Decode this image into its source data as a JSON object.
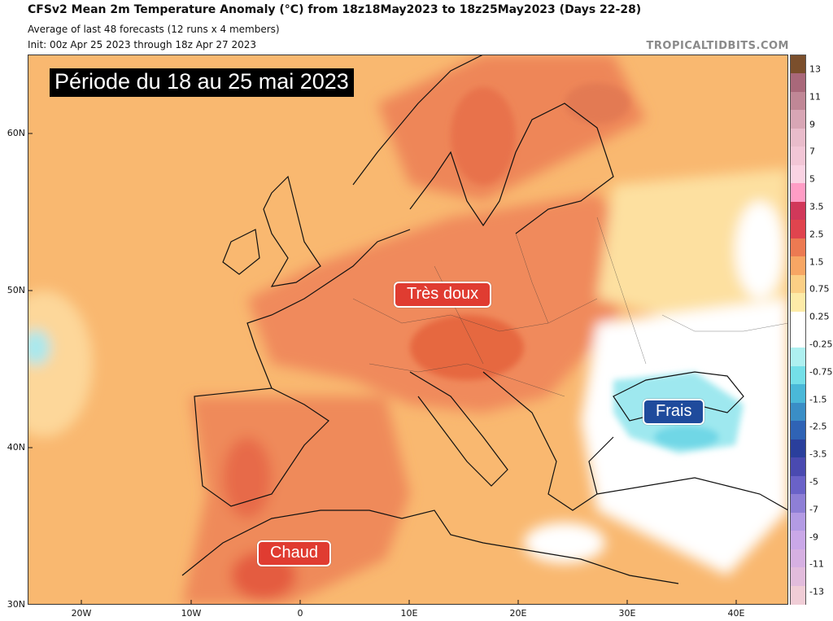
{
  "header": {
    "title": "CFSv2 Mean 2m Temperature Anomaly (°C) from 18z18May2023 to 18z25May2023 (Days 22-28)",
    "subtitle1": "Average of last 48 forecasts (12 runs x 4 members)",
    "subtitle2": "Init: 00z Apr 25 2023 through 18z Apr 27 2023",
    "credit": "TROPICALTIDBITS.COM"
  },
  "overlay": {
    "period": "Période du 18 au 25 mai 2023",
    "labels": {
      "doux": "Très doux",
      "chaud": "Chaud",
      "frais": "Frais"
    }
  },
  "axes": {
    "lat": [
      "60N",
      "50N",
      "40N",
      "30N"
    ],
    "lon": [
      "20W",
      "10W",
      "0",
      "10E",
      "20E",
      "30E",
      "40E"
    ]
  },
  "colorbar": {
    "labels": [
      "13",
      "11",
      "9",
      "7",
      "5",
      "3.5",
      "2.5",
      "1.5",
      "0.75",
      "0.25",
      "-0.25",
      "-0.75",
      "-1.5",
      "-2.5",
      "-3.5",
      "-5",
      "-7",
      "-9",
      "-11",
      "-13"
    ],
    "colors": [
      "#7b4f2c",
      "#a9687a",
      "#c08796",
      "#d8a6b5",
      "#e9bccb",
      "#f2c6d6",
      "#fad3e3",
      "#ff9dc5",
      "#d1385a",
      "#e0444e",
      "#ec7a52",
      "#f7a664",
      "#fbcf85",
      "#fdeba8",
      "#ffffff",
      "#ffffff",
      "#aef0f0",
      "#74dfe8",
      "#4ab8d8",
      "#3a8ec6",
      "#2f63b5",
      "#2a3f9c",
      "#4a4ab0",
      "#6a62c8",
      "#8e7fd6",
      "#b39be4",
      "#caa8e8",
      "#d6b0e2",
      "#e2bcdc",
      "#f0cdd6"
    ]
  },
  "map": {
    "ocean_color": "#f9b870",
    "land_warm_color": "#f28f5c",
    "hot_color": "#e4694a",
    "cool_color": "#8fe6ef",
    "neutral_color": "#ffffff",
    "light_color": "#fde3a6"
  }
}
